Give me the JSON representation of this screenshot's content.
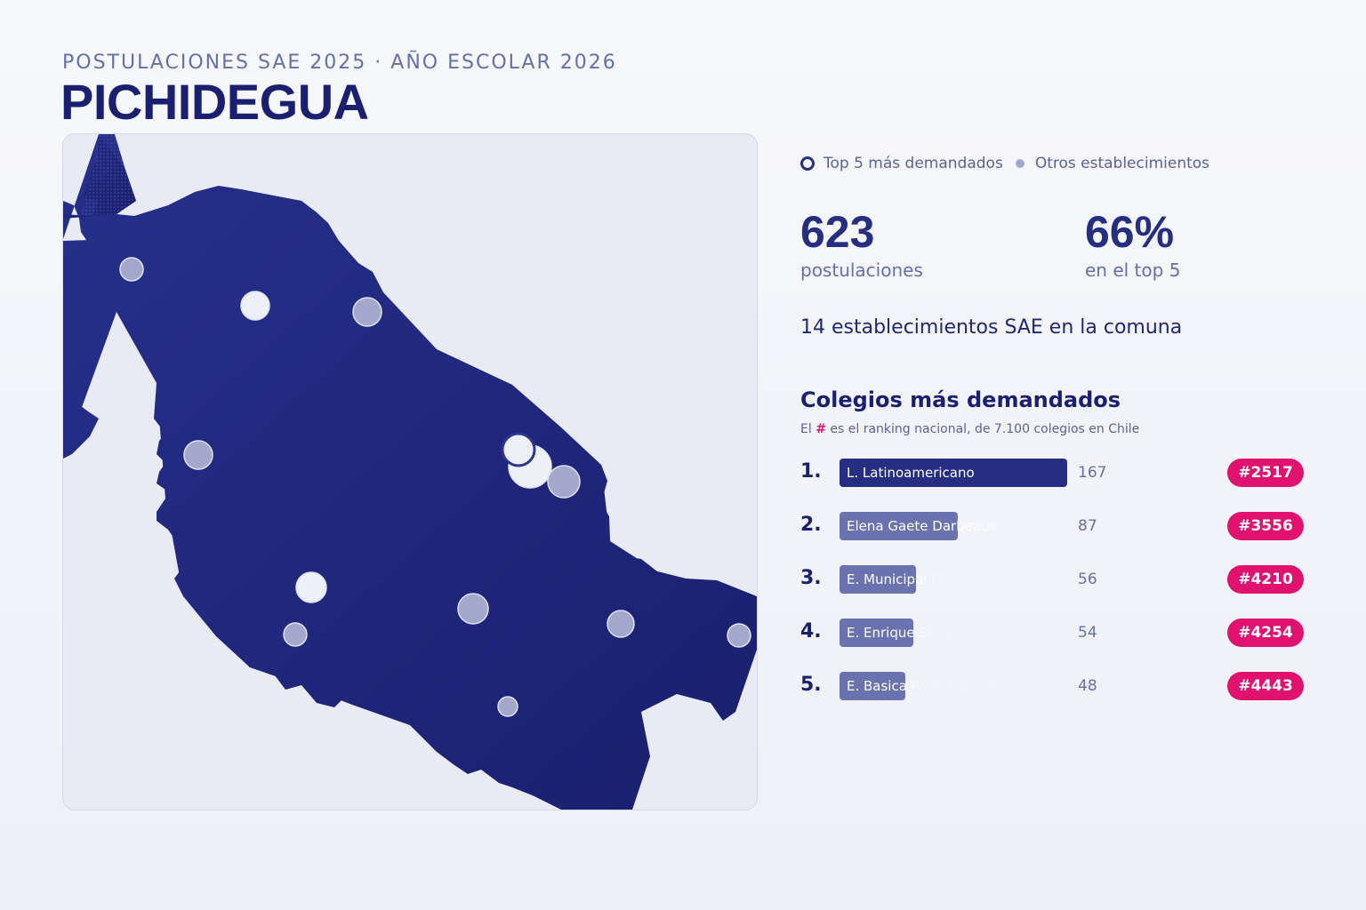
{
  "header": {
    "subtitle": "POSTULACIONES SAE 2025 · AÑO ESCOLAR 2026",
    "title": "PICHIDEGUA"
  },
  "legend": {
    "top5": "Top 5 más demandados",
    "others": "Otros establecimientos"
  },
  "stats": {
    "postulaciones_value": "623",
    "postulaciones_label": "postulaciones",
    "top5_value": "66%",
    "top5_label": "en el top 5",
    "establecimientos": "14 establecimientos SAE en la comuna"
  },
  "ranking": {
    "title": "Colegios más demandados",
    "note_prefix": "El",
    "note_hash": "#",
    "note_suffix": "es el ranking nacional, de 7.100 colegios en Chile",
    "items": [
      {
        "rank": "1.",
        "name": "L. Latinoamericano",
        "value": 167,
        "value_label": "167",
        "badge": "#2517"
      },
      {
        "rank": "2.",
        "name": "Elena Gaete Darbeaux",
        "value": 87,
        "value_label": "87",
        "badge": "#3556"
      },
      {
        "rank": "3.",
        "name": "E. Municipal De San Ro",
        "value": 56,
        "value_label": "56",
        "badge": "#4210"
      },
      {
        "rank": "4.",
        "name": "E. Enrique Serrano De",
        "value": 54,
        "value_label": "54",
        "badge": "#4254"
      },
      {
        "rank": "5.",
        "name": "E. Basica Pataguas Cer",
        "value": 48,
        "value_label": "48",
        "badge": "#4443"
      }
    ]
  },
  "colors": {
    "region_fill": "#232a84",
    "accent": "#e0116f",
    "marker_other": "#a3a8cc",
    "marker_top": "#eef0f8"
  }
}
